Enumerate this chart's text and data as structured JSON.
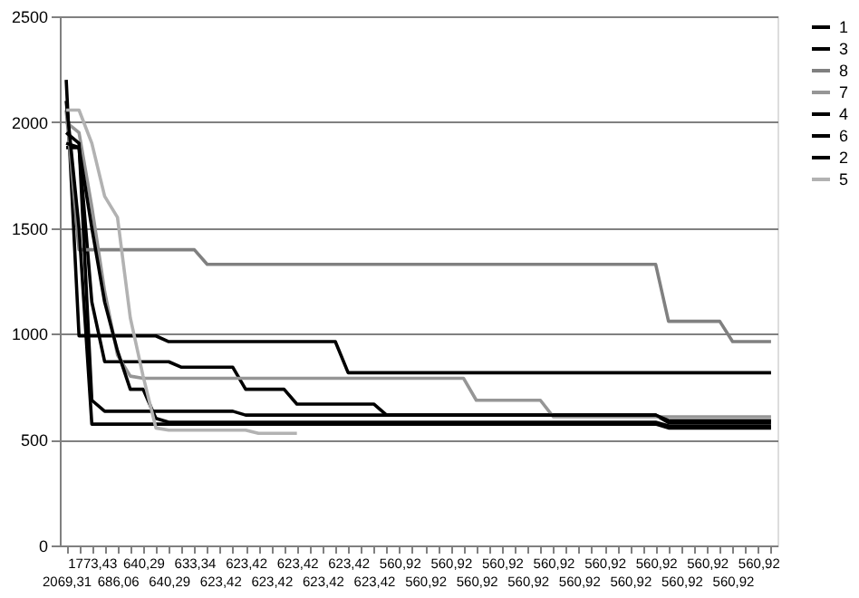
{
  "chart_data": {
    "type": "line",
    "categories": [
      "2069,31",
      null,
      "1773,43",
      null,
      "686,06",
      null,
      "640,29",
      null,
      "640,29",
      null,
      "633,34",
      null,
      "623,42",
      null,
      "623,42",
      null,
      "623,42",
      null,
      "623,42",
      null,
      "623,42",
      null,
      "623,42",
      null,
      "623,42",
      null,
      "560,92",
      null,
      "560,92",
      null,
      "560,92",
      null,
      "560,92",
      null,
      "560,92",
      null,
      "560,92",
      null,
      "560,92",
      null,
      "560,92",
      null,
      "560,92",
      null,
      "560,92",
      null,
      "560,92",
      null,
      "560,92",
      null,
      "560,92",
      null,
      "560,92",
      null,
      "560,92",
      null
    ],
    "series": [
      {
        "name": "1",
        "color": "#000000",
        "values": [
          2200,
          990,
          990,
          990,
          990,
          990,
          990,
          990,
          963,
          963,
          963,
          963,
          963,
          963,
          963,
          963,
          963,
          963,
          963,
          963,
          963,
          963,
          816,
          816,
          816,
          816,
          816,
          816,
          816,
          816,
          816,
          816,
          816,
          816,
          816,
          816,
          816,
          816,
          816,
          816,
          816,
          816,
          816,
          816,
          816,
          816,
          816,
          816,
          816,
          816,
          816,
          816,
          816,
          816,
          816,
          816
        ]
      },
      {
        "name": "3",
        "color": "#000000",
        "values": [
          1880,
          1880,
          1150,
          868,
          868,
          868,
          868,
          868,
          868,
          842,
          842,
          842,
          842,
          842,
          738,
          738,
          738,
          738,
          668,
          668,
          668,
          668,
          668,
          668,
          668,
          616,
          616,
          616,
          616,
          616,
          616,
          616,
          616,
          616,
          616,
          616,
          616,
          616,
          616,
          616,
          616,
          616,
          616,
          616,
          616,
          616,
          616,
          580,
          580,
          580,
          580,
          580,
          580,
          580,
          580,
          580
        ]
      },
      {
        "name": "8",
        "color": "#808080",
        "values": [
          2057,
          1397,
          1397,
          1397,
          1397,
          1397,
          1397,
          1397,
          1397,
          1397,
          1397,
          1328,
          1328,
          1328,
          1328,
          1328,
          1328,
          1328,
          1328,
          1328,
          1328,
          1328,
          1328,
          1328,
          1328,
          1328,
          1328,
          1328,
          1328,
          1328,
          1328,
          1328,
          1328,
          1328,
          1328,
          1328,
          1328,
          1328,
          1328,
          1328,
          1328,
          1328,
          1328,
          1328,
          1328,
          1328,
          1328,
          1059,
          1059,
          1059,
          1059,
          1059,
          963,
          963,
          963,
          963
        ]
      },
      {
        "name": "7",
        "color": "#969696",
        "values": [
          2000,
          1950,
          1600,
          1200,
          900,
          800,
          790,
          790,
          790,
          790,
          790,
          790,
          790,
          790,
          790,
          790,
          790,
          790,
          790,
          790,
          790,
          790,
          790,
          790,
          790,
          790,
          790,
          790,
          790,
          790,
          790,
          790,
          686,
          686,
          686,
          686,
          686,
          686,
          608,
          608,
          608,
          608,
          608,
          608,
          608,
          608,
          608,
          608,
          608,
          608,
          608,
          608,
          608,
          608,
          608,
          608
        ]
      },
      {
        "name": "4",
        "color": "#000000",
        "values": [
          1950,
          1900,
          686,
          634,
          634,
          634,
          634,
          634,
          634,
          634,
          634,
          634,
          634,
          634,
          616,
          616,
          616,
          616,
          616,
          616,
          616,
          616,
          616,
          616,
          616,
          616,
          616,
          616,
          616,
          616,
          616,
          616,
          616,
          616,
          616,
          616,
          616,
          616,
          616,
          616,
          616,
          616,
          616,
          616,
          616,
          616,
          616,
          590,
          590,
          590,
          590,
          590,
          590,
          590,
          590,
          590
        ]
      },
      {
        "name": "6",
        "color": "#000000",
        "values": [
          1900,
          1880,
          1500,
          1150,
          920,
          738,
          738,
          600,
          582,
          582,
          582,
          582,
          582,
          582,
          582,
          582,
          582,
          582,
          582,
          582,
          582,
          582,
          582,
          582,
          582,
          582,
          582,
          582,
          582,
          582,
          582,
          582,
          582,
          582,
          582,
          582,
          582,
          582,
          582,
          582,
          582,
          582,
          582,
          582,
          582,
          582,
          582,
          565,
          565,
          565,
          565,
          565,
          565,
          565,
          565,
          565
        ]
      },
      {
        "name": "2",
        "color": "#000000",
        "values": [
          2100,
          1500,
          573,
          573,
          573,
          573,
          573,
          573,
          573,
          573,
          573,
          573,
          573,
          573,
          573,
          573,
          573,
          573,
          573,
          573,
          573,
          573,
          573,
          573,
          573,
          573,
          573,
          573,
          573,
          573,
          573,
          573,
          573,
          573,
          573,
          573,
          573,
          573,
          573,
          573,
          573,
          573,
          573,
          573,
          573,
          573,
          573,
          555,
          555,
          555,
          555,
          555,
          555,
          555,
          555,
          555
        ]
      },
      {
        "name": "5",
        "color": "#b2b2b2",
        "values": [
          2057,
          2057,
          1900,
          1650,
          1550,
          1076,
          800,
          555,
          545,
          545,
          545,
          545,
          545,
          545,
          545,
          530,
          530,
          530,
          530,
          null,
          null,
          null,
          null,
          null,
          null,
          null,
          null,
          null,
          null,
          null,
          null,
          null,
          null,
          null,
          null,
          null,
          null,
          null,
          null,
          null,
          null,
          null,
          null,
          null,
          null,
          null,
          null,
          null,
          null,
          null,
          null,
          null,
          null,
          null,
          null,
          null
        ]
      }
    ],
    "ylim": [
      0,
      2500
    ],
    "yticks": [
      0,
      500,
      1000,
      1500,
      2000,
      2500
    ],
    "grid": "y",
    "legend": "right"
  }
}
